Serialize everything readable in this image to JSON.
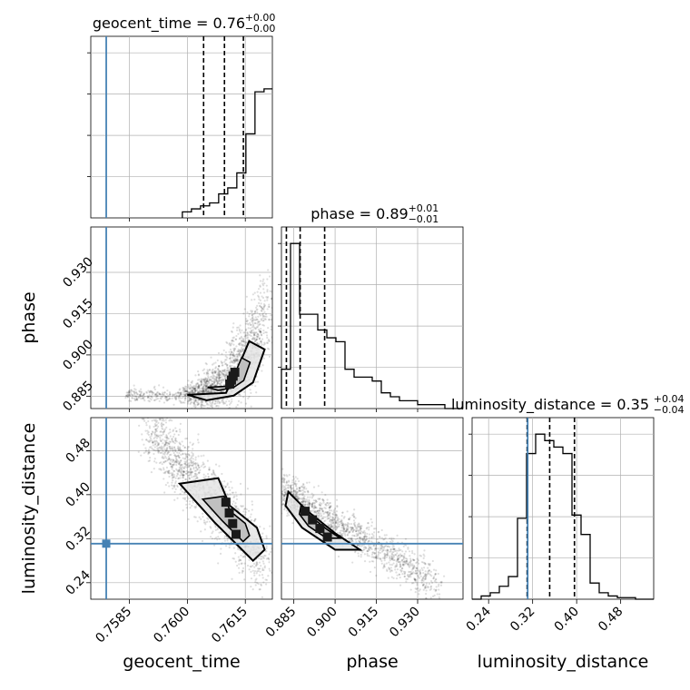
{
  "chart_data": {
    "type": "corner",
    "parameters": [
      "geocent_time",
      "phase",
      "luminosity_distance"
    ],
    "truth_color": "#4682b4",
    "truths": {
      "geocent_time": 0.7579,
      "phase": null,
      "luminosity_distance": 0.311
    },
    "titles": [
      {
        "param": "geocent_time",
        "label": "geocent_time = 0.76",
        "plus": "+0.00",
        "minus": "−0.00"
      },
      {
        "param": "phase",
        "label": "phase = 0.89",
        "plus": "+0.01",
        "minus": "−0.01"
      },
      {
        "param": "luminosity_distance",
        "label": "luminosity_distance = 0.35",
        "plus": "+0.04",
        "minus": "−0.04"
      }
    ],
    "axes": {
      "geocent_time": {
        "range": [
          0.7575,
          0.7622
        ],
        "ticks": [
          0.7585,
          0.76,
          0.7615
        ],
        "tick_labels": [
          "0.7585",
          "0.7600",
          "0.7615"
        ]
      },
      "phase": {
        "range": [
          0.8805,
          0.9465
        ],
        "ticks": [
          0.885,
          0.9,
          0.915,
          0.93
        ],
        "tick_labels": [
          "0.885",
          "0.900",
          "0.915",
          "0.930"
        ]
      },
      "luminosity_distance": {
        "range": [
          0.21,
          0.54
        ],
        "ticks": [
          0.24,
          0.32,
          0.4,
          0.48
        ],
        "tick_labels": [
          "0.24",
          "0.32",
          "0.40",
          "0.48"
        ]
      }
    },
    "quantiles": {
      "geocent_time": [
        0.76042,
        0.76096,
        0.76145
      ],
      "phase": [
        0.8823,
        0.8873,
        0.8962
      ],
      "luminosity_distance": [
        0.31,
        0.351,
        0.396
      ]
    },
    "histograms": {
      "geocent_time": {
        "edges_start": 0.75987,
        "bin_width": 0.000235,
        "counts": [
          2,
          3,
          4,
          5,
          8,
          10,
          15,
          28,
          42,
          43,
          44,
          48,
          47,
          51,
          55,
          40,
          12,
          3
        ]
      },
      "phase": {
        "edges_start": 0.8805,
        "bin_width": 0.0033,
        "counts": [
          10,
          42,
          24,
          24,
          20,
          18,
          17,
          10,
          8,
          8,
          7,
          4,
          3,
          2,
          2,
          1,
          1,
          1,
          0,
          0
        ]
      },
      "luminosity_distance": {
        "edges_start": 0.21,
        "bin_width": 0.0165,
        "counts": [
          0,
          2,
          4,
          8,
          14,
          50,
          90,
          102,
          98,
          94,
          90,
          52,
          40,
          10,
          4,
          2,
          1,
          1,
          0,
          0
        ]
      }
    },
    "grid": true
  }
}
